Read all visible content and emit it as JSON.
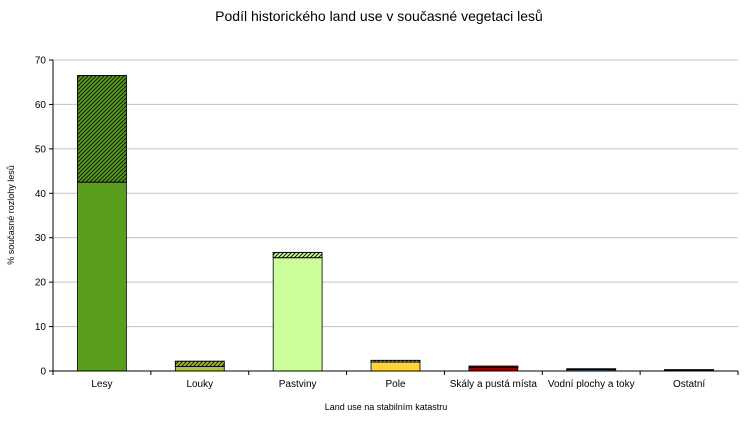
{
  "chart_data": {
    "type": "bar",
    "stacked": true,
    "title": "Podíl historického land use v současné vegetaci lesů",
    "xlabel": "Land use na stabilním katastru",
    "ylabel": "% současné rozlohy lesů",
    "ylim": [
      0,
      70
    ],
    "yticks": [
      0,
      10,
      20,
      30,
      40,
      50,
      60,
      70
    ],
    "grid": true,
    "legend": "none",
    "categories": [
      "Lesy",
      "Louky",
      "Pastviny",
      "Pole",
      "Skály a pustá místa",
      "Vodní plochy a toky",
      "Ostatní"
    ],
    "colors": [
      "#5a9e1e",
      "#a8c83a",
      "#ccff99",
      "#ffd633",
      "#990000",
      "#6699cc",
      "#111111"
    ],
    "series": [
      {
        "values": [
          42.5,
          1.0,
          25.5,
          2.0,
          0.8,
          0.3,
          0.2
        ]
      },
      {
        "values": [
          24.0,
          1.2,
          1.2,
          0.4,
          0.3,
          0.2,
          0.1
        ]
      }
    ]
  }
}
